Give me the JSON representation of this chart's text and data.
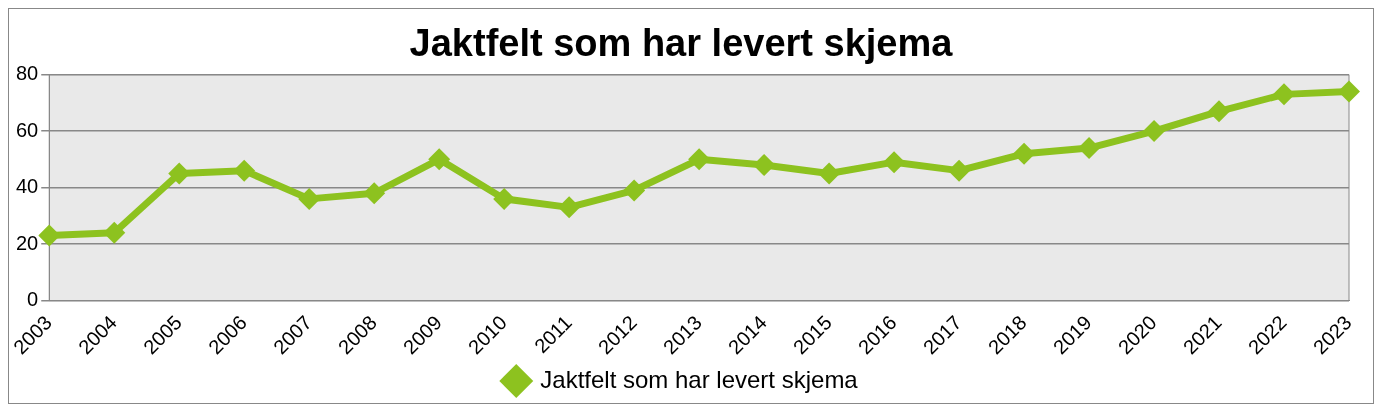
{
  "chart_data": {
    "type": "line",
    "title": "Jaktfelt som har levert skjema",
    "categories": [
      "2003",
      "2004",
      "2005",
      "2006",
      "2007",
      "2008",
      "2009",
      "2010",
      "2011",
      "2012",
      "2013",
      "2014",
      "2015",
      "2016",
      "2017",
      "2018",
      "2019",
      "2020",
      "2021",
      "2022",
      "2023"
    ],
    "series": [
      {
        "name": "Jaktfelt som har levert skjema",
        "color": "#8dc21f",
        "values": [
          23,
          24,
          45,
          46,
          36,
          38,
          50,
          36,
          33,
          39,
          50,
          48,
          45,
          49,
          46,
          52,
          54,
          60,
          67,
          73,
          74
        ]
      }
    ],
    "ylim": [
      0,
      80
    ],
    "yticks": [
      0,
      20,
      40,
      60,
      80
    ],
    "grid": "y",
    "legend": "bottom",
    "marker": "diamond",
    "line_style": "solid"
  }
}
